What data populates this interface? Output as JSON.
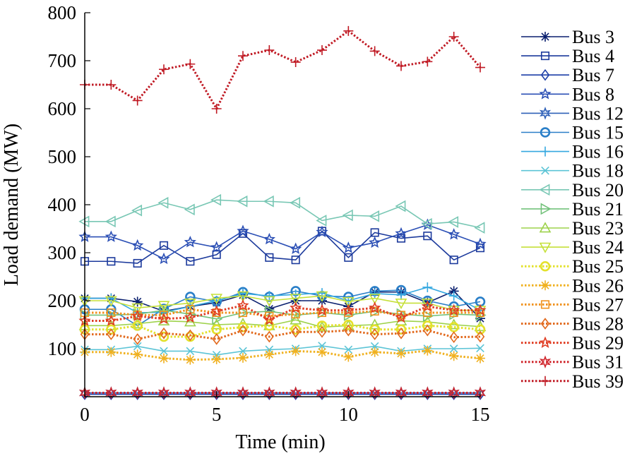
{
  "chart_data": {
    "type": "line",
    "xlabel": "Time (min)",
    "ylabel": "Load demand (MW)",
    "xlim": [
      0,
      15
    ],
    "ylim": [
      0,
      800
    ],
    "xticks": [
      0,
      5,
      10,
      15
    ],
    "yticks": [
      100,
      200,
      300,
      400,
      500,
      600,
      700,
      800
    ],
    "grid": false,
    "legend_position": "right",
    "x": [
      0,
      1,
      2,
      3,
      4,
      5,
      6,
      7,
      8,
      9,
      10,
      11,
      12,
      13,
      14,
      15
    ],
    "series": [
      {
        "name": "Bus 3",
        "color": "#0a1f6e",
        "marker": "asterisk",
        "dash": "solid",
        "values": [
          205,
          205,
          198,
          178,
          188,
          196,
          212,
          183,
          200,
          200,
          188,
          218,
          218,
          196,
          220,
          163
        ]
      },
      {
        "name": "Bus 4",
        "color": "#1c3a9c",
        "marker": "square",
        "dash": "solid",
        "values": [
          282,
          282,
          278,
          315,
          282,
          296,
          340,
          290,
          285,
          345,
          290,
          342,
          330,
          335,
          285,
          310
        ]
      },
      {
        "name": "Bus 7",
        "color": "#1d3fa8",
        "marker": "diamond",
        "dash": "solid",
        "values": [
          5,
          5,
          5,
          5,
          5,
          5,
          5,
          5,
          5,
          5,
          5,
          5,
          5,
          5,
          5,
          5
        ]
      },
      {
        "name": "Bus 8",
        "color": "#2b4fb5",
        "marker": "star",
        "dash": "solid",
        "values": [
          333,
          333,
          315,
          287,
          322,
          311,
          345,
          328,
          308,
          343,
          310,
          321,
          340,
          358,
          338,
          318
        ]
      },
      {
        "name": "Bus 12",
        "color": "#2e60b8",
        "marker": "hexstar",
        "dash": "solid",
        "values": [
          8,
          8,
          8,
          8,
          8,
          8,
          8,
          8,
          8,
          8,
          8,
          8,
          8,
          8,
          8,
          8
        ]
      },
      {
        "name": "Bus 15",
        "color": "#2a7fc8",
        "marker": "circle",
        "dash": "solid",
        "values": [
          182,
          182,
          148,
          183,
          208,
          198,
          218,
          208,
          220,
          210,
          208,
          220,
          222,
          200,
          188,
          198
        ]
      },
      {
        "name": "Bus 16",
        "color": "#35a8e0",
        "marker": "plus",
        "dash": "solid",
        "values": [
          205,
          205,
          175,
          176,
          188,
          200,
          215,
          210,
          213,
          216,
          200,
          215,
          212,
          228,
          210,
          180
        ]
      },
      {
        "name": "Bus 18",
        "color": "#5cc4d6",
        "marker": "x",
        "dash": "solid",
        "values": [
          98,
          98,
          105,
          95,
          95,
          87,
          95,
          98,
          100,
          106,
          98,
          105,
          95,
          100,
          100,
          101
        ]
      },
      {
        "name": "Bus 20",
        "color": "#78c7b4",
        "marker": "triangle-left",
        "dash": "solid",
        "values": [
          365,
          365,
          388,
          404,
          390,
          410,
          407,
          407,
          404,
          367,
          378,
          376,
          397,
          360,
          364,
          352
        ]
      },
      {
        "name": "Bus 21",
        "color": "#73c27b",
        "marker": "triangle-right",
        "dash": "solid",
        "values": [
          170,
          170,
          172,
          180,
          172,
          162,
          175,
          178,
          170,
          175,
          170,
          178,
          172,
          168,
          172,
          170
        ]
      },
      {
        "name": "Bus 23",
        "color": "#9ed24b",
        "marker": "triangle-up",
        "dash": "solid",
        "values": [
          148,
          148,
          152,
          158,
          156,
          150,
          152,
          148,
          160,
          145,
          148,
          150,
          158,
          156,
          150,
          146
        ]
      },
      {
        "name": "Bus 24",
        "color": "#c6e03a",
        "marker": "triangle-down",
        "dash": "solid",
        "values": [
          200,
          200,
          185,
          190,
          195,
          205,
          210,
          200,
          205,
          210,
          198,
          205,
          195,
          195,
          180,
          180
        ]
      },
      {
        "name": "Bus 25",
        "color": "#e3e12b",
        "marker": "circle",
        "dash": "dotted",
        "values": [
          140,
          140,
          148,
          125,
          125,
          140,
          145,
          148,
          140,
          148,
          150,
          140,
          140,
          148,
          145,
          140
        ]
      },
      {
        "name": "Bus 26",
        "color": "#f0b120",
        "marker": "asterisk",
        "dash": "dotted",
        "values": [
          93,
          93,
          88,
          80,
          77,
          78,
          81,
          88,
          95,
          93,
          83,
          93,
          90,
          96,
          85,
          80
        ]
      },
      {
        "name": "Bus 27",
        "color": "#f0921e",
        "marker": "square",
        "dash": "dotted",
        "values": [
          175,
          175,
          170,
          170,
          182,
          175,
          175,
          168,
          172,
          175,
          175,
          178,
          170,
          175,
          175,
          175
        ]
      },
      {
        "name": "Bus 28",
        "color": "#e26a1e",
        "marker": "diamond",
        "dash": "dotted",
        "values": [
          130,
          130,
          120,
          132,
          128,
          120,
          138,
          125,
          135,
          135,
          138,
          130,
          132,
          138,
          124,
          125
        ]
      },
      {
        "name": "Bus 29",
        "color": "#e03c22",
        "marker": "star",
        "dash": "dotted",
        "values": [
          158,
          158,
          168,
          162,
          165,
          178,
          190,
          160,
          185,
          180,
          180,
          185,
          165,
          188,
          180,
          180
        ]
      },
      {
        "name": "Bus 31",
        "color": "#d0262c",
        "marker": "hexstar",
        "dash": "dotted",
        "values": [
          8,
          8,
          8,
          8,
          8,
          8,
          8,
          8,
          8,
          8,
          8,
          8,
          8,
          8,
          8,
          8
        ]
      },
      {
        "name": "Bus 39",
        "color": "#c01a24",
        "marker": "plus",
        "dash": "dotted",
        "values": [
          650,
          650,
          617,
          682,
          693,
          600,
          710,
          722,
          697,
          722,
          762,
          720,
          689,
          698,
          750,
          686
        ]
      }
    ]
  }
}
